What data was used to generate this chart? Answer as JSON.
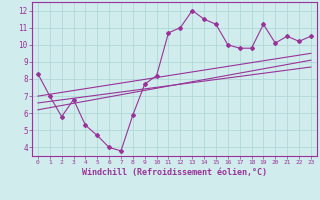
{
  "xlabel": "Windchill (Refroidissement éolien,°C)",
  "background_color": "#d0ecec",
  "line_color": "#993399",
  "grid_color": "#aad4d4",
  "xlim": [
    -0.5,
    23.5
  ],
  "ylim": [
    3.5,
    12.5
  ],
  "xticks": [
    0,
    1,
    2,
    3,
    4,
    5,
    6,
    7,
    8,
    9,
    10,
    11,
    12,
    13,
    14,
    15,
    16,
    17,
    18,
    19,
    20,
    21,
    22,
    23
  ],
  "yticks": [
    4,
    5,
    6,
    7,
    8,
    9,
    10,
    11,
    12
  ],
  "series1_x": [
    0,
    1,
    2,
    3,
    4,
    5,
    6,
    7,
    8,
    9,
    10,
    11,
    12,
    13,
    14,
    15,
    16,
    17,
    18,
    19,
    20,
    21,
    22,
    23
  ],
  "series1_y": [
    8.3,
    7.0,
    5.8,
    6.8,
    5.3,
    4.7,
    4.0,
    3.8,
    5.9,
    7.7,
    8.2,
    10.7,
    11.0,
    12.0,
    11.5,
    11.2,
    10.0,
    9.8,
    9.8,
    11.2,
    10.1,
    10.5,
    10.2,
    10.5
  ],
  "trend1_x": [
    0,
    23
  ],
  "trend1_y": [
    6.2,
    9.1
  ],
  "trend2_x": [
    0,
    23
  ],
  "trend2_y": [
    7.0,
    9.5
  ],
  "trend3_x": [
    0,
    23
  ],
  "trend3_y": [
    6.6,
    8.7
  ]
}
